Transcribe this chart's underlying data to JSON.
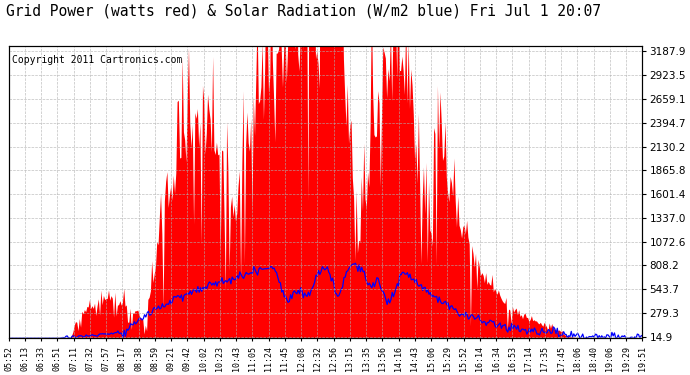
{
  "title": "Grid Power (watts red) & Solar Radiation (W/m2 blue) Fri Jul 1 20:07",
  "copyright": "Copyright 2011 Cartronics.com",
  "yticks": [
    14.9,
    279.3,
    543.7,
    808.2,
    1072.6,
    1337.0,
    1601.4,
    1865.8,
    2130.2,
    2394.7,
    2659.1,
    2923.5,
    3187.9
  ],
  "ymin": 0,
  "ymax": 3250,
  "background_color": "#ffffff",
  "grid_color": "#b0b0b0",
  "fill_color": "#ff0000",
  "line_color": "#0000ff",
  "title_fontsize": 10.5,
  "copyright_fontsize": 7,
  "xtick_labels": [
    "05:52",
    "06:13",
    "06:33",
    "06:51",
    "07:11",
    "07:32",
    "07:57",
    "08:17",
    "08:38",
    "08:59",
    "09:21",
    "09:42",
    "10:02",
    "10:23",
    "10:43",
    "11:05",
    "11:24",
    "11:45",
    "12:08",
    "12:32",
    "12:56",
    "13:15",
    "13:35",
    "13:56",
    "14:16",
    "14:43",
    "15:06",
    "15:29",
    "15:52",
    "16:14",
    "16:34",
    "16:53",
    "17:14",
    "17:35",
    "17:45",
    "18:06",
    "18:40",
    "19:06",
    "19:29",
    "19:51"
  ]
}
